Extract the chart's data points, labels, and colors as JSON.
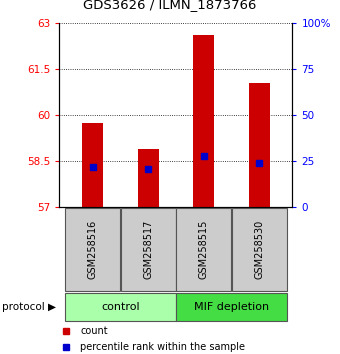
{
  "title": "GDS3626 / ILMN_1873766",
  "samples": [
    "GSM258516",
    "GSM258517",
    "GSM258515",
    "GSM258530"
  ],
  "bar_tops": [
    59.75,
    58.9,
    62.6,
    61.05
  ],
  "bar_bottom": 57.0,
  "percentile_values": [
    58.3,
    58.25,
    58.65,
    58.45
  ],
  "ylim_left": [
    57,
    63
  ],
  "ylim_right": [
    0,
    100
  ],
  "yticks_left": [
    57,
    58.5,
    60,
    61.5,
    63
  ],
  "yticks_right": [
    0,
    25,
    50,
    75,
    100
  ],
  "ytick_labels_right": [
    "0",
    "25",
    "50",
    "75",
    "100%"
  ],
  "bar_color": "#cc0000",
  "percentile_color": "#0000cc",
  "groups": [
    {
      "label": "control",
      "samples": [
        0,
        1
      ],
      "color": "#aaffaa"
    },
    {
      "label": "MIF depletion",
      "samples": [
        2,
        3
      ],
      "color": "#44dd44"
    }
  ],
  "sample_box_color": "#cccccc",
  "legend_count_label": "count",
  "legend_pct_label": "percentile rank within the sample"
}
